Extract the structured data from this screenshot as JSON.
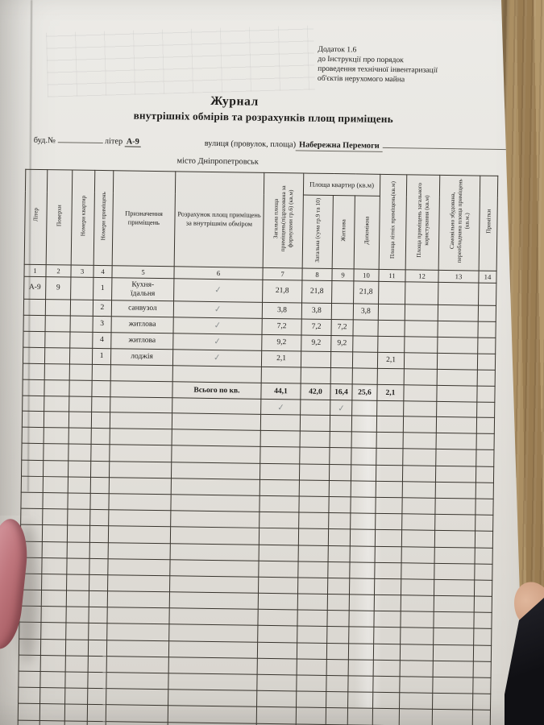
{
  "annex": {
    "lines": [
      "Додаток 1.6",
      "до Інструкції про порядок",
      "проведення технічної інвентаризації",
      "об'єктів нерухомого майна"
    ]
  },
  "title": {
    "line1": "Журнал",
    "line2": "внутрішніх обмірів та розрахунків площ приміщень"
  },
  "form": {
    "bud_label": "буд.№",
    "liter_label": "літер",
    "liter_value": "А-9",
    "street_label": "вулиця (провулок, площа)",
    "street_value": "Набережна Перемоги",
    "city_label": "місто",
    "city_value": "Дніпропетровськ"
  },
  "table": {
    "headers": {
      "c1": "Літер",
      "c2": "Поверхи",
      "c3": "Номери квартир",
      "c4": "Номери приміщень",
      "c5": "Призначення приміщень",
      "c6": "Розрахунок площ приміщень за внутрішнім обміром",
      "c7": "Загальна площа приміщень(підрахована за формулами гр.6) (кв.м)",
      "group": "Площа квартир (кв.м)",
      "c8": "Загальна (сума гр.9 та 10)",
      "c9": "Житлова",
      "c10": "Допоміжна",
      "c11": "Площа літніх приміщень(кв.м)",
      "c12": "Площа приміщень загального користування (кв.м)",
      "c13": "Самовільно збудована, переобладнана площа приміщень (кв.м.)",
      "c14": "Примітки"
    },
    "col_numbers": [
      "1",
      "2",
      "3",
      "4",
      "5",
      "6",
      "7",
      "8",
      "9",
      "10",
      "11",
      "12",
      "13",
      "14"
    ],
    "rows": [
      {
        "tall": true,
        "cells": [
          "А-9",
          "9",
          "",
          "1",
          "Кухня-\nїдальня",
          "✓",
          "21,8",
          "21,8",
          "",
          "21,8",
          "",
          "",
          "",
          ""
        ]
      },
      {
        "tall": false,
        "cells": [
          "",
          "",
          "",
          "2",
          "санвузол",
          "✓",
          "3,8",
          "3,8",
          "",
          "3,8",
          "",
          "",
          "",
          ""
        ]
      },
      {
        "tall": false,
        "cells": [
          "",
          "",
          "",
          "3",
          "житлова",
          "✓",
          "7,2",
          "7,2",
          "7,2",
          "",
          "",
          "",
          "",
          ""
        ]
      },
      {
        "tall": false,
        "cells": [
          "",
          "",
          "",
          "4",
          "житлова",
          "✓",
          "9,2",
          "9,2",
          "9,2",
          "",
          "",
          "",
          "",
          ""
        ]
      },
      {
        "tall": false,
        "cells": [
          "",
          "",
          "",
          "1",
          "лоджія",
          "✓",
          "2,1",
          "",
          "",
          "",
          "2,1",
          "",
          "",
          ""
        ]
      },
      {
        "tall": false,
        "cells": [
          "",
          "",
          "",
          "",
          "",
          "",
          "",
          "",
          "",
          "",
          "",
          "",
          "",
          ""
        ]
      }
    ],
    "totals": {
      "cells": [
        "",
        "",
        "",
        "",
        "",
        "Всього по кв.",
        "44,1",
        "42,0",
        "16,4",
        "25,6",
        "2,1",
        "",
        "",
        ""
      ]
    },
    "check_row": {
      "cells": [
        "",
        "",
        "",
        "",
        "",
        "",
        "✓",
        "",
        "✓",
        "",
        "",
        "",
        "",
        ""
      ]
    },
    "empty_row_count": 20
  },
  "colors": {
    "paper": "#e7e5e0",
    "wood": "#a5895c",
    "ink": "#1d1c1a",
    "grid_line": "#37332c",
    "pencil_check": "#8b9091"
  }
}
